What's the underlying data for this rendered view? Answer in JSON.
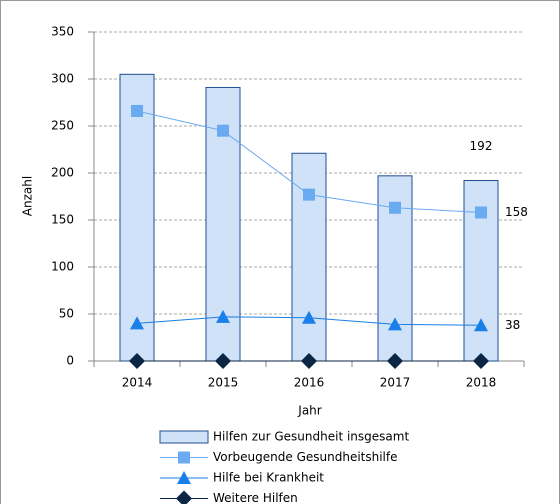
{
  "chart_data": {
    "type": "bar",
    "x_label": "Jahr",
    "y_label": "Anzahl",
    "categories": [
      "2014",
      "2015",
      "2016",
      "2017",
      "2018"
    ],
    "ylim": [
      0,
      350
    ],
    "yticks": [
      0,
      50,
      100,
      150,
      200,
      250,
      300,
      350
    ],
    "grid": true,
    "series": [
      {
        "name": "Hilfen zur Gesundheit insgesamt",
        "type": "bar",
        "color": "#cfe2f8",
        "values": [
          305,
          291,
          221,
          197,
          192
        ]
      },
      {
        "name": "Vorbeugende Gesundheitshilfe",
        "type": "line",
        "marker": "square",
        "color": "#6aaaf0",
        "values": [
          266,
          245,
          177,
          163,
          158
        ]
      },
      {
        "name": "Hilfe bei Krankheit",
        "type": "line",
        "marker": "triangle",
        "color": "#1a7fe8",
        "values": [
          40,
          47,
          46,
          39,
          38
        ]
      },
      {
        "name": "Weitere Hilfen",
        "type": "line",
        "marker": "diamond",
        "color": "#0b2545",
        "values": [
          0,
          0,
          0,
          0,
          0
        ]
      }
    ]
  }
}
